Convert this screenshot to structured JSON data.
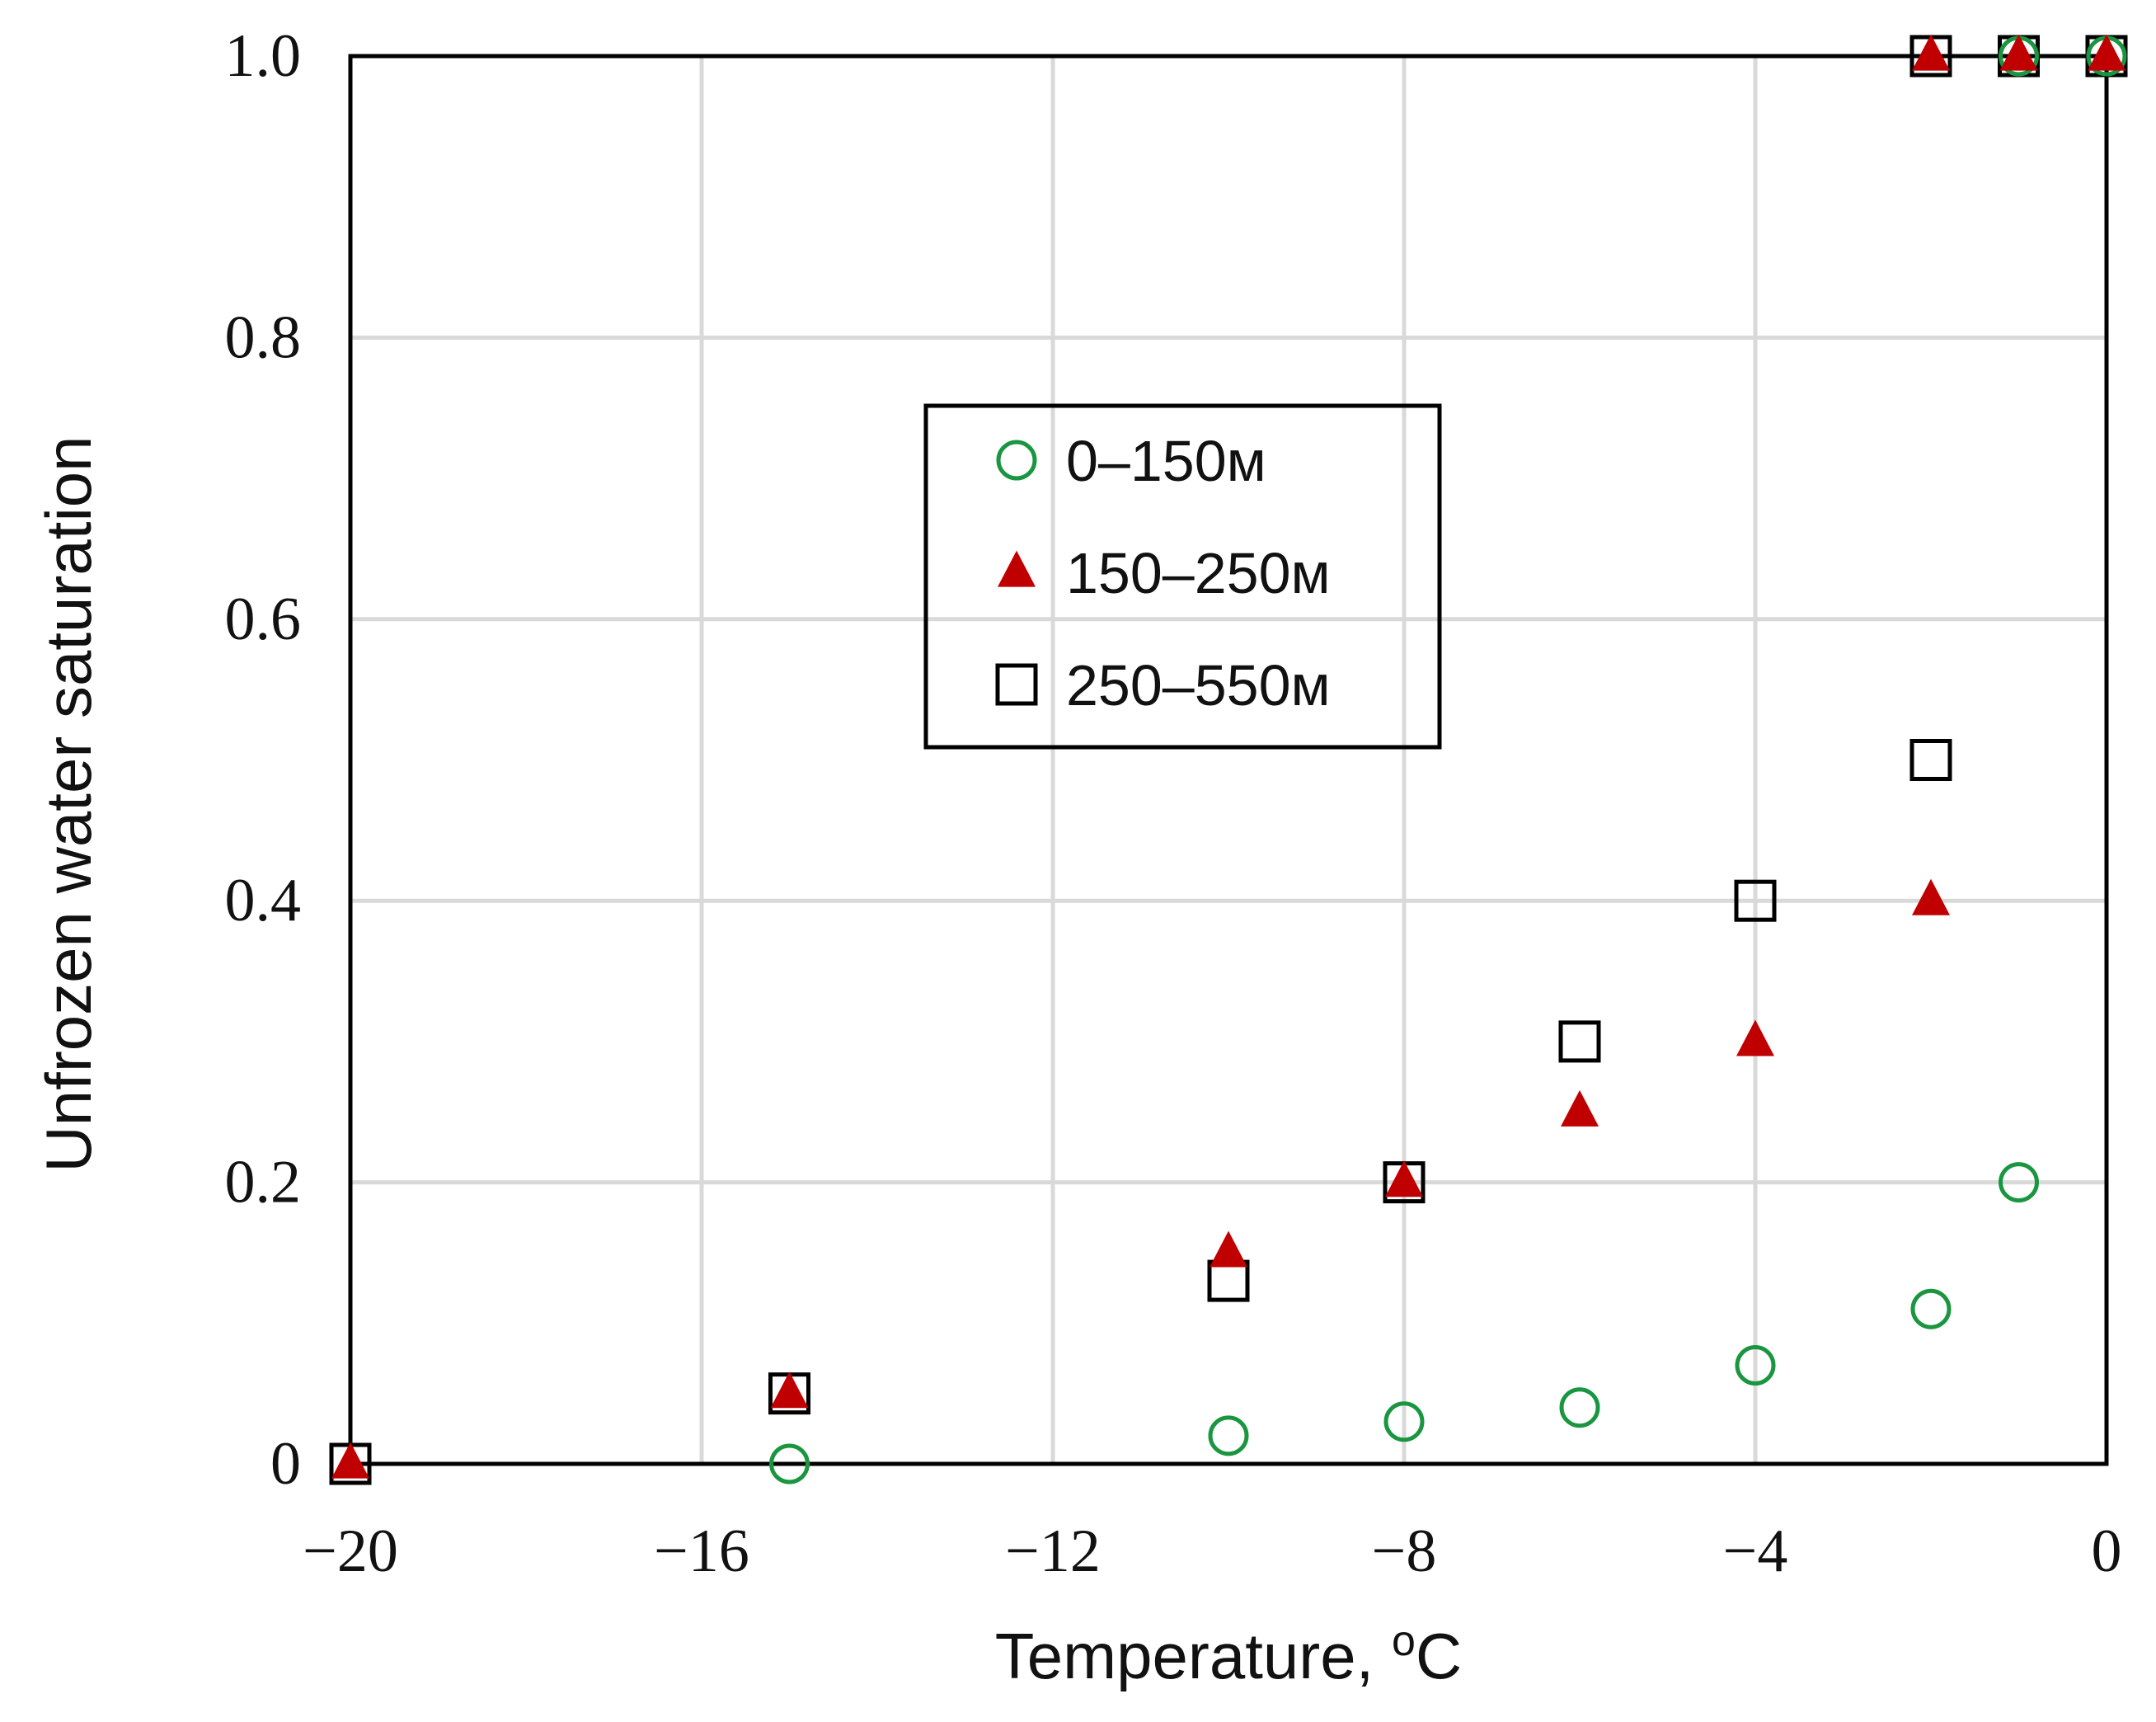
{
  "chart_data": {
    "type": "scatter",
    "title": "",
    "xlabel": "Temperature, ",
    "xlabel_superscript": "o",
    "xlabel_unit": "C",
    "ylabel": "Unfrozen water saturation",
    "xlim": [
      -20,
      0
    ],
    "ylim": [
      0,
      1.0
    ],
    "xticks": [
      -20,
      -16,
      -12,
      -8,
      -4,
      0
    ],
    "xtick_labels": [
      "−20",
      "−16",
      "−12",
      "−8",
      "−4",
      "0"
    ],
    "yticks": [
      0,
      0.2,
      0.4,
      0.6,
      0.8,
      1.0
    ],
    "ytick_labels": [
      "0",
      "0.2",
      "0.4",
      "0.6",
      "0.8",
      "1.0"
    ],
    "grid": true,
    "legend_position": "upper-center",
    "series": [
      {
        "name": "0–150м",
        "marker": "circle-open",
        "color": "#1a9641",
        "points": [
          [
            -15,
            0.0
          ],
          [
            -10,
            0.02
          ],
          [
            -8,
            0.03
          ],
          [
            -6,
            0.04
          ],
          [
            -4,
            0.07
          ],
          [
            -2,
            0.11
          ],
          [
            -1,
            0.2
          ],
          [
            -1,
            1.0
          ],
          [
            0,
            1.0
          ]
        ]
      },
      {
        "name": "150–250м",
        "marker": "triangle-filled",
        "color": "#c00000",
        "points": [
          [
            -20,
            0.0
          ],
          [
            -15,
            0.05
          ],
          [
            -10,
            0.15
          ],
          [
            -8,
            0.2
          ],
          [
            -6,
            0.25
          ],
          [
            -4,
            0.3
          ],
          [
            -2,
            0.4
          ],
          [
            -2,
            1.0
          ],
          [
            -1,
            1.0
          ],
          [
            0,
            1.0
          ]
        ]
      },
      {
        "name": "250–550м",
        "marker": "square-open",
        "color": "#000000",
        "points": [
          [
            -20,
            0.0
          ],
          [
            -15,
            0.05
          ],
          [
            -10,
            0.13
          ],
          [
            -8,
            0.2
          ],
          [
            -6,
            0.3
          ],
          [
            -4,
            0.4
          ],
          [
            -2,
            0.5
          ],
          [
            -2,
            1.0
          ],
          [
            -1,
            1.0
          ],
          [
            0,
            1.0
          ]
        ]
      }
    ]
  }
}
